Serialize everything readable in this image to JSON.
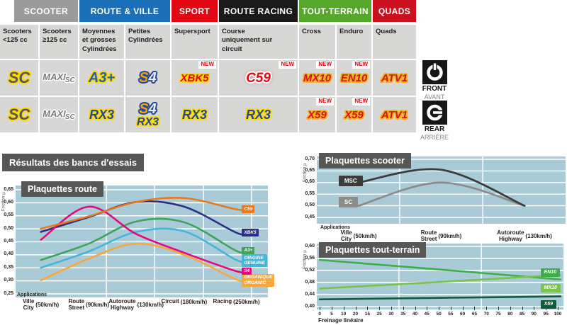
{
  "matrix": {
    "groups": [
      {
        "label": "SCOOTER",
        "color": "#9c9b9b"
      },
      {
        "label": "ROUTE & VILLE",
        "color": "#1c70b7"
      },
      {
        "label": "SPORT",
        "color": "#e30613"
      },
      {
        "label": "ROUTE RACING",
        "color": "#1b1a19"
      },
      {
        "label": "TOUT-TERRAIN",
        "color": "#56a82c"
      },
      {
        "label": "QUADS",
        "color": "#cb1120"
      }
    ],
    "subcols": [
      "Scooters <125 cc",
      "Scooters ≥125 cc",
      "Moyennes et grosses Cylindrées",
      "Petites Cylindrées",
      "Supersport",
      "Course uniquement sur circuit",
      "Cross",
      "Enduro",
      "Quads"
    ],
    "new_label": "NEW",
    "front": {
      "label": "FRONT",
      "sub": "AVANT"
    },
    "rear": {
      "label": "REAR",
      "sub": "ARRIÈRE"
    },
    "front_row": [
      {
        "badges": [
          {
            "text": "SC"
          }
        ]
      },
      {
        "badges": [
          {
            "text": "MAXI",
            "sub": "SC"
          }
        ]
      },
      {
        "badges": [
          {
            "text": "A3+"
          }
        ]
      },
      {
        "badges": [
          {
            "text": "S4"
          }
        ]
      },
      {
        "badges": [
          {
            "text": "XBK5"
          }
        ],
        "new": true
      },
      {
        "badges": [
          {
            "text": "C59"
          }
        ],
        "new": true
      },
      {
        "badges": [
          {
            "text": "MX10"
          }
        ],
        "new": true
      },
      {
        "badges": [
          {
            "text": "EN10"
          }
        ],
        "new": true
      },
      {
        "badges": [
          {
            "text": "ATV1"
          }
        ]
      }
    ],
    "rear_row": [
      {
        "badges": [
          {
            "text": "SC"
          }
        ]
      },
      {
        "badges": [
          {
            "text": "MAXI",
            "sub": "SC"
          }
        ]
      },
      {
        "badges": [
          {
            "text": "RX3"
          }
        ]
      },
      {
        "badges": [
          {
            "text": "S4"
          },
          {
            "text": "RX3"
          }
        ]
      },
      {
        "badges": [
          {
            "text": "RX3"
          }
        ]
      },
      {
        "badges": [
          {
            "text": "RX3"
          }
        ]
      },
      {
        "badges": [
          {
            "text": "X59"
          }
        ],
        "new": true
      },
      {
        "badges": [
          {
            "text": "X59"
          }
        ],
        "new": true
      },
      {
        "badges": [
          {
            "text": "ATV1"
          }
        ]
      }
    ]
  },
  "results_title": "Résultats des bancs d'essais",
  "chart_data": [
    {
      "id": "route",
      "type": "line",
      "title": "Plaquettes route",
      "ylabel": "Friction µ",
      "app_label": "Applications",
      "yticks": [
        "0,65",
        "0,60",
        "0,55",
        "0,50",
        "0,45",
        "0,40",
        "0,35",
        "0,30",
        "0,25"
      ],
      "ymax": 0.65,
      "ymin": 0.25,
      "grid": true,
      "legend_position": "right",
      "categories": [
        {
          "l1": "Ville",
          "l2": "City",
          "speed": "(50km/h)"
        },
        {
          "l1": "Route",
          "l2": "Street",
          "speed": "(90km/h)"
        },
        {
          "l1": "Autoroute",
          "l2": "Highway",
          "speed": "(130km/h)"
        },
        {
          "l1": "Circuit",
          "l2": "",
          "speed": "(180km/h)"
        },
        {
          "l1": "Racing",
          "l2": "",
          "speed": "(250km/h)"
        }
      ],
      "series": [
        {
          "name": "ORGANIQUE / ORGANIC",
          "chip": [
            "ORGANIQUE",
            "ORGANIC"
          ],
          "color": "#f6a83f",
          "values": [
            0.302,
            0.385,
            0.443,
            0.4,
            0.305
          ]
        },
        {
          "name": "ORIGINE / GENUINE",
          "chip": [
            "ORIGINE",
            "GENUINE"
          ],
          "color": "#45b5d8",
          "values": [
            0.35,
            0.413,
            0.488,
            0.49,
            0.38
          ]
        },
        {
          "name": "A3+",
          "chip": [
            "A3+"
          ],
          "color": "#3fa45a",
          "values": [
            0.38,
            0.443,
            0.528,
            0.525,
            0.415
          ]
        },
        {
          "name": "XBK5",
          "chip": [
            "XBK5"
          ],
          "color": "#2b3087",
          "values": [
            0.488,
            0.545,
            0.603,
            0.585,
            0.485
          ]
        },
        {
          "name": "S4",
          "chip": [
            "S4"
          ],
          "color": "#e5097d",
          "values": [
            0.458,
            0.585,
            0.48,
            0.408,
            0.337
          ]
        },
        {
          "name": "C59",
          "chip": [
            "C59"
          ],
          "color": "#e8791e",
          "values": [
            0.5,
            0.548,
            0.603,
            0.618,
            0.575
          ]
        }
      ]
    },
    {
      "id": "scooter",
      "type": "line",
      "title": "Plaquettes scooter",
      "ylabel": "Friction µ",
      "app_label": "Applications",
      "yticks": [
        "0,70",
        "0,65",
        "0,60",
        "0,55",
        "0,50",
        "0,45"
      ],
      "ymax": 0.7,
      "ymin": 0.45,
      "grid": true,
      "legend_position": "left",
      "categories": [
        {
          "l1": "Ville",
          "l2": "City",
          "speed": "(50km/h)"
        },
        {
          "l1": "Route",
          "l2": "Street",
          "speed": "(90km/h)"
        },
        {
          "l1": "Autoroute",
          "l2": "Highway",
          "speed": "(130km/h)"
        }
      ],
      "series": [
        {
          "name": "SC",
          "chip": [
            "SC"
          ],
          "color": "#8c8c8b",
          "values": [
            0.5,
            0.6,
            0.5
          ],
          "chip_mu": 0.515,
          "chip_side": "left"
        },
        {
          "name": "MSC",
          "chip": [
            "MSC"
          ],
          "color": "#3b3b3a",
          "values": [
            0.6,
            0.655,
            0.5
          ],
          "chip_mu": 0.605,
          "chip_side": "left"
        }
      ]
    },
    {
      "id": "tt",
      "type": "line",
      "title": "Plaquettes tout-terrain",
      "ylabel": "Friction µ",
      "xlabel": "Freinage linéaire",
      "yticks": [
        "0,60",
        "0,56",
        "0,52",
        "0,48",
        "0,44",
        "0,40"
      ],
      "ymax": 0.6,
      "ymin": 0.4,
      "grid": true,
      "legend_position": "right",
      "xticks": [
        "0",
        "5",
        "10",
        "20",
        "15",
        "25",
        "30",
        "35",
        "40",
        "45",
        "50",
        "55",
        "60",
        "65",
        "70",
        "75",
        "80",
        "85",
        "90",
        "95",
        "100"
      ],
      "series": [
        {
          "name": "EN10",
          "chip": [
            "EN10"
          ],
          "color": "#3fae49",
          "values": [
            0.555,
            0.523,
            0.49
          ],
          "chip_mu": 0.515
        },
        {
          "name": "MX10",
          "chip": [
            "MX10"
          ],
          "color": "#7cc34c",
          "values": [
            0.46,
            0.482,
            0.505
          ],
          "chip_mu": 0.462
        },
        {
          "name": "X59",
          "chip": [
            "X59"
          ],
          "color": "#0e5c38",
          "values": [
            0.424,
            0.429,
            0.434
          ],
          "chip_mu": 0.409
        }
      ]
    }
  ]
}
